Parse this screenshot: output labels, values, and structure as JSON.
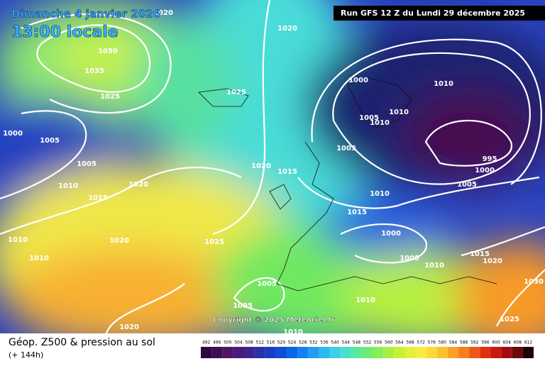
{
  "header": {
    "date": "Dimanche 4 janvier 2026",
    "time": "13:00 locale",
    "run": "Run GFS 12 Z du Lundi 29 décembre 2025",
    "copyright": "Copyright © 2025 Meteociel.fr"
  },
  "footer": {
    "title": "Géop. Z500 & pression au sol",
    "lead": "(+ 144h)"
  },
  "legend": {
    "values": [
      492,
      496,
      500,
      504,
      508,
      512,
      516,
      520,
      524,
      528,
      532,
      536,
      540,
      544,
      548,
      552,
      556,
      560,
      564,
      568,
      572,
      576,
      580,
      584,
      588,
      592,
      596,
      600,
      604,
      608,
      612
    ],
    "colors": [
      "#2b0a3d",
      "#3d0f52",
      "#4f1466",
      "#4a1a7a",
      "#3a2590",
      "#2a30a8",
      "#1a3cc0",
      "#0d4ed8",
      "#0a64e8",
      "#1480f0",
      "#209cf2",
      "#2cb8f0",
      "#3ad0e8",
      "#48e0c8",
      "#58e8a0",
      "#6cec78",
      "#88ee58",
      "#a8f040",
      "#c8f038",
      "#e4f038",
      "#f8ec40",
      "#fcd838",
      "#fcc030",
      "#f8a028",
      "#f48020",
      "#ec5818",
      "#e03010",
      "#c81810",
      "#a00c10",
      "#6c0808",
      "#200404"
    ]
  },
  "isobars": [
    "1020",
    "1020",
    "1050",
    "1035",
    "1025",
    "1025",
    "1000",
    "1010",
    "1005",
    "1010",
    "1010",
    "1000",
    "1005",
    "1005",
    "995",
    "1000",
    "1005",
    "1020",
    "1015",
    "1010",
    "1020",
    "1005",
    "1010",
    "1015",
    "1015",
    "1000",
    "1010",
    "1020",
    "1025",
    "1010",
    "1005",
    "1015",
    "1020",
    "1010",
    "1030",
    "1005",
    "1005",
    "1010",
    "1025",
    "1020",
    "1010"
  ]
}
